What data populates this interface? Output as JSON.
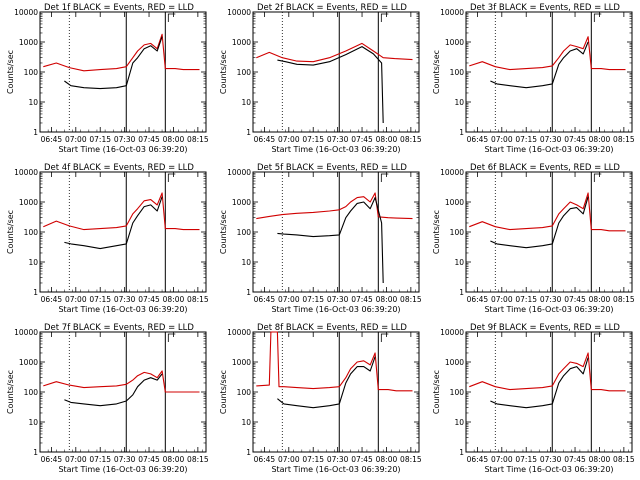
{
  "colors": {
    "events": "#000000",
    "lld": "#d00000",
    "frame": "#000000"
  },
  "x_tick_labels": [
    "06:45",
    "07:00",
    "07:15",
    "07:30",
    "07:45",
    "08:00",
    "08:15"
  ],
  "y_tick_labels": [
    "1",
    "10",
    "100",
    "1000",
    "10000"
  ],
  "ylabel": "Counts/sec",
  "xlabel": "Start Time (16-Oct-03 06:39:20)",
  "chart_data": [
    {
      "type": "line",
      "title": "Det 1f BLACK = Events, RED = LLD",
      "ylog": true,
      "ylim": [
        1,
        10000
      ],
      "xlim": [
        "06:38",
        "08:20"
      ],
      "series": [
        {
          "name": "Events",
          "color": "#000000",
          "x": [
            "06:53",
            "06:57",
            "07:05",
            "07:15",
            "07:25",
            "07:31",
            "07:35",
            "07:38",
            "07:42",
            "07:46",
            "07:50",
            "07:53"
          ],
          "values": [
            50,
            35,
            30,
            28,
            30,
            35,
            200,
            300,
            600,
            750,
            500,
            1500
          ]
        },
        {
          "name": "LLD",
          "color": "#d00000",
          "x": [
            "06:40",
            "06:48",
            "06:56",
            "07:05",
            "07:15",
            "07:25",
            "07:31",
            "07:35",
            "07:38",
            "07:42",
            "07:46",
            "07:50",
            "07:53",
            "07:55",
            "08:01",
            "08:06",
            "08:16"
          ],
          "values": [
            150,
            200,
            140,
            110,
            120,
            130,
            150,
            300,
            500,
            800,
            900,
            600,
            1800,
            130,
            130,
            120,
            120
          ]
        }
      ]
    },
    {
      "type": "line",
      "title": "Det 2f BLACK = Events, RED = LLD",
      "ylog": true,
      "ylim": [
        1,
        10000
      ],
      "xlim": [
        "06:38",
        "08:20"
      ],
      "series": [
        {
          "name": "Events",
          "color": "#000000",
          "x": [
            "06:53",
            "06:58",
            "07:05",
            "07:15",
            "07:25",
            "07:35",
            "07:45",
            "07:52",
            "07:57",
            "07:58"
          ],
          "values": [
            250,
            220,
            180,
            170,
            220,
            380,
            700,
            400,
            200,
            2
          ]
        },
        {
          "name": "LLD",
          "color": "#d00000",
          "x": [
            "06:40",
            "06:48",
            "06:56",
            "07:05",
            "07:15",
            "07:25",
            "07:35",
            "07:45",
            "07:52",
            "07:58",
            "08:05",
            "08:16"
          ],
          "values": [
            300,
            450,
            300,
            230,
            220,
            300,
            500,
            900,
            500,
            300,
            280,
            260
          ]
        }
      ]
    },
    {
      "type": "line",
      "title": "Det 3f BLACK = Events, RED = LLD",
      "ylog": true,
      "ylim": [
        1,
        10000
      ],
      "xlim": [
        "06:38",
        "08:20"
      ],
      "series": [
        {
          "name": "Events",
          "color": "#000000",
          "x": [
            "06:53",
            "06:57",
            "07:05",
            "07:15",
            "07:25",
            "07:31",
            "07:35",
            "07:38",
            "07:42",
            "07:46",
            "07:50",
            "07:53"
          ],
          "values": [
            50,
            40,
            35,
            30,
            35,
            40,
            180,
            300,
            500,
            600,
            400,
            1000
          ]
        },
        {
          "name": "LLD",
          "color": "#d00000",
          "x": [
            "06:40",
            "06:48",
            "06:56",
            "07:05",
            "07:15",
            "07:25",
            "07:31",
            "07:35",
            "07:38",
            "07:42",
            "07:46",
            "07:50",
            "07:53",
            "07:55",
            "08:01",
            "08:06",
            "08:16"
          ],
          "values": [
            160,
            220,
            150,
            120,
            130,
            140,
            160,
            300,
            500,
            800,
            700,
            600,
            1500,
            130,
            130,
            120,
            120
          ]
        }
      ]
    },
    {
      "type": "line",
      "title": "Det 4f BLACK = Events, RED = LLD",
      "ylog": true,
      "ylim": [
        1,
        10000
      ],
      "xlim": [
        "06:38",
        "08:20"
      ],
      "series": [
        {
          "name": "Events",
          "color": "#000000",
          "x": [
            "06:53",
            "06:57",
            "07:05",
            "07:15",
            "07:25",
            "07:31",
            "07:35",
            "07:38",
            "07:42",
            "07:46",
            "07:50",
            "07:53"
          ],
          "values": [
            45,
            40,
            35,
            28,
            35,
            40,
            200,
            350,
            700,
            800,
            500,
            1500
          ]
        },
        {
          "name": "LLD",
          "color": "#d00000",
          "x": [
            "06:40",
            "06:48",
            "06:56",
            "07:05",
            "07:15",
            "07:25",
            "07:31",
            "07:35",
            "07:38",
            "07:42",
            "07:46",
            "07:50",
            "07:53",
            "07:55",
            "08:01",
            "08:06",
            "08:16"
          ],
          "values": [
            150,
            230,
            160,
            120,
            130,
            140,
            160,
            400,
            600,
            1100,
            1200,
            800,
            2000,
            130,
            130,
            120,
            120
          ]
        }
      ]
    },
    {
      "type": "line",
      "title": "Det 5f BLACK = Events, RED = LLD",
      "ylog": true,
      "ylim": [
        1,
        10000
      ],
      "xlim": [
        "06:38",
        "08:20"
      ],
      "series": [
        {
          "name": "Events",
          "color": "#000000",
          "x": [
            "06:53",
            "06:57",
            "07:05",
            "07:15",
            "07:25",
            "07:31",
            "07:35",
            "07:38",
            "07:42",
            "07:46",
            "07:50",
            "07:53",
            "07:57",
            "07:58"
          ],
          "values": [
            90,
            85,
            80,
            70,
            75,
            80,
            300,
            500,
            900,
            1000,
            600,
            1400,
            200,
            2
          ]
        },
        {
          "name": "LLD",
          "color": "#d00000",
          "x": [
            "06:40",
            "06:48",
            "06:56",
            "07:05",
            "07:15",
            "07:25",
            "07:31",
            "07:35",
            "07:38",
            "07:42",
            "07:46",
            "07:50",
            "07:53",
            "07:55",
            "08:01",
            "08:06",
            "08:16"
          ],
          "values": [
            280,
            330,
            380,
            420,
            450,
            500,
            550,
            700,
            1000,
            1400,
            1500,
            1000,
            2000,
            320,
            300,
            290,
            280
          ]
        }
      ]
    },
    {
      "type": "line",
      "title": "Det 6f BLACK = Events, RED = LLD",
      "ylog": true,
      "ylim": [
        1,
        10000
      ],
      "xlim": [
        "06:38",
        "08:20"
      ],
      "series": [
        {
          "name": "Events",
          "color": "#000000",
          "x": [
            "06:53",
            "06:57",
            "07:05",
            "07:15",
            "07:25",
            "07:31",
            "07:35",
            "07:38",
            "07:42",
            "07:46",
            "07:50",
            "07:53"
          ],
          "values": [
            50,
            40,
            35,
            30,
            35,
            40,
            200,
            350,
            600,
            650,
            400,
            1500
          ]
        },
        {
          "name": "LLD",
          "color": "#d00000",
          "x": [
            "06:40",
            "06:48",
            "06:56",
            "07:05",
            "07:15",
            "07:25",
            "07:31",
            "07:35",
            "07:38",
            "07:42",
            "07:46",
            "07:50",
            "07:53",
            "07:55",
            "08:01",
            "08:06",
            "08:16"
          ],
          "values": [
            150,
            220,
            150,
            120,
            130,
            140,
            160,
            400,
            600,
            1000,
            800,
            600,
            2000,
            120,
            120,
            110,
            110
          ]
        }
      ]
    },
    {
      "type": "line",
      "title": "Det 7f BLACK = Events, RED = LLD",
      "ylog": true,
      "ylim": [
        1,
        10000
      ],
      "xlim": [
        "06:38",
        "08:20"
      ],
      "series": [
        {
          "name": "Events",
          "color": "#000000",
          "x": [
            "06:53",
            "06:57",
            "07:05",
            "07:15",
            "07:25",
            "07:31",
            "07:35",
            "07:38",
            "07:42",
            "07:46",
            "07:50",
            "07:53"
          ],
          "values": [
            55,
            45,
            40,
            35,
            40,
            50,
            80,
            150,
            250,
            300,
            250,
            400
          ]
        },
        {
          "name": "LLD",
          "color": "#d00000",
          "x": [
            "06:40",
            "06:48",
            "06:56",
            "07:05",
            "07:15",
            "07:25",
            "07:31",
            "07:35",
            "07:38",
            "07:42",
            "07:46",
            "07:50",
            "07:53",
            "07:55",
            "08:01",
            "08:06",
            "08:16"
          ],
          "values": [
            160,
            220,
            170,
            140,
            150,
            160,
            180,
            250,
            350,
            450,
            400,
            300,
            500,
            100,
            100,
            100,
            100
          ]
        }
      ]
    },
    {
      "type": "line",
      "title": "Det 8f BLACK = Events, RED = LLD",
      "ylog": true,
      "ylim": [
        1,
        10000
      ],
      "xlim": [
        "06:38",
        "08:20"
      ],
      "series": [
        {
          "name": "Events",
          "color": "#000000",
          "x": [
            "06:53",
            "06:57",
            "07:05",
            "07:15",
            "07:25",
            "07:31",
            "07:35",
            "07:38",
            "07:42",
            "07:46",
            "07:50",
            "07:53"
          ],
          "values": [
            60,
            40,
            35,
            30,
            35,
            40,
            200,
            400,
            700,
            700,
            500,
            1500
          ]
        },
        {
          "name": "LLD",
          "color": "#d00000",
          "x": [
            "06:40",
            "06:48",
            "06:49",
            "06:53",
            "06:54",
            "06:57",
            "07:05",
            "07:15",
            "07:25",
            "07:31",
            "07:35",
            "07:38",
            "07:42",
            "07:46",
            "07:50",
            "07:53",
            "07:55",
            "08:01",
            "08:06",
            "08:16"
          ],
          "values": [
            160,
            170,
            10000,
            10000,
            150,
            150,
            140,
            130,
            140,
            150,
            300,
            600,
            1000,
            1100,
            800,
            2000,
            120,
            120,
            110,
            110
          ]
        }
      ]
    },
    {
      "type": "line",
      "title": "Det 9f BLACK = Events, RED = LLD",
      "ylog": true,
      "ylim": [
        1,
        10000
      ],
      "xlim": [
        "06:38",
        "08:20"
      ],
      "series": [
        {
          "name": "Events",
          "color": "#000000",
          "x": [
            "06:53",
            "06:57",
            "07:05",
            "07:15",
            "07:25",
            "07:31",
            "07:35",
            "07:38",
            "07:42",
            "07:46",
            "07:50",
            "07:53"
          ],
          "values": [
            50,
            40,
            35,
            30,
            35,
            40,
            200,
            350,
            600,
            700,
            400,
            1400
          ]
        },
        {
          "name": "LLD",
          "color": "#d00000",
          "x": [
            "06:40",
            "06:48",
            "06:56",
            "07:05",
            "07:15",
            "07:25",
            "07:31",
            "07:35",
            "07:38",
            "07:42",
            "07:46",
            "07:50",
            "07:53",
            "07:55",
            "08:01",
            "08:06",
            "08:16"
          ],
          "values": [
            150,
            220,
            150,
            120,
            130,
            140,
            160,
            400,
            600,
            1000,
            900,
            700,
            2000,
            120,
            120,
            110,
            110
          ]
        }
      ]
    }
  ]
}
